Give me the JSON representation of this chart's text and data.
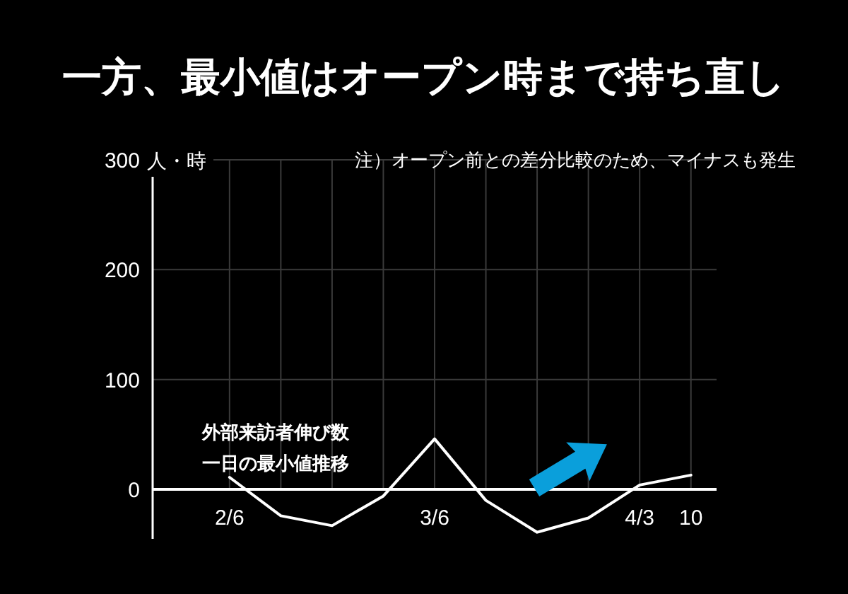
{
  "chart_data": {
    "type": "line",
    "title": "一方、最小値はオープン時まで持ち直し",
    "ylabel": "人・時",
    "annotations": [
      "注）オープン前との差分比較のため、マイナスも発生",
      "外部来訪者伸び数",
      "一日の最小値推移"
    ],
    "categories": [
      "2/6",
      null,
      null,
      null,
      "3/6",
      null,
      null,
      null,
      "4/3",
      "10"
    ],
    "series": [
      {
        "color": "#ffffff",
        "values": [
          11,
          -24,
          -33,
          -6,
          46,
          -10,
          -39,
          -26,
          4,
          13
        ]
      }
    ],
    "ylim": [
      -45,
      300
    ],
    "yticks": [
      0,
      100,
      200,
      300
    ],
    "grid": true
  }
}
